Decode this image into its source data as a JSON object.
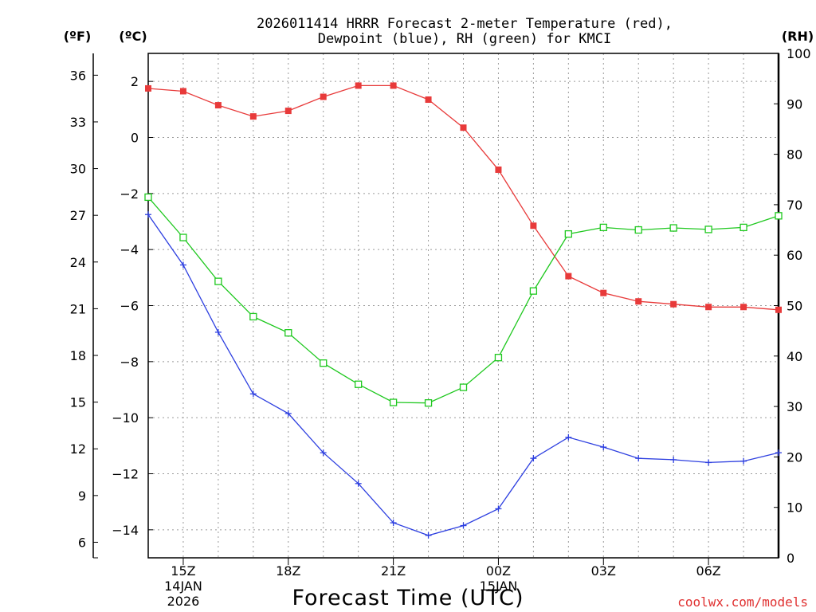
{
  "title": {
    "line1": "2026011414 HRRR Forecast 2-meter Temperature (red),",
    "line2": "Dewpoint (blue), RH (green) for KMCI"
  },
  "units": {
    "fahrenheit": "(ºF)",
    "celsius": "(ºC)",
    "rh": "(RH)"
  },
  "xlabel": "Forecast Time (UTC)",
  "credit": "coolwx.com/models",
  "colors": {
    "temperature": "#e83a3a",
    "dewpoint": "#2d3fe0",
    "rh": "#1ec81e",
    "axis": "#000000"
  },
  "chart_data": {
    "type": "line",
    "x": [
      14,
      15,
      16,
      17,
      18,
      19,
      20,
      21,
      22,
      23,
      24,
      25,
      26,
      27,
      28,
      29,
      30,
      31,
      32
    ],
    "xlim": [
      14,
      32
    ],
    "ylim_celsius": [
      -15,
      3
    ],
    "ylim_fahrenheit": [
      5,
      37.4
    ],
    "ylim_rh": [
      0,
      100
    ],
    "celsius_ticks": [
      "2",
      "0",
      "−2",
      "−4",
      "−6",
      "−8",
      "−10",
      "−12",
      "−14"
    ],
    "celsius_tick_values": [
      2,
      0,
      -2,
      -4,
      -6,
      -8,
      -10,
      -12,
      -14
    ],
    "fahrenheit_ticks": [
      "36",
      "33",
      "30",
      "27",
      "24",
      "21",
      "18",
      "15",
      "12",
      "9",
      "6"
    ],
    "fahrenheit_tick_values": [
      36,
      33,
      30,
      27,
      24,
      21,
      18,
      15,
      12,
      9,
      6
    ],
    "rh_ticks": [
      "100",
      "90",
      "80",
      "70",
      "60",
      "50",
      "40",
      "30",
      "20",
      "10",
      "0"
    ],
    "rh_tick_values": [
      100,
      90,
      80,
      70,
      60,
      50,
      40,
      30,
      20,
      10,
      0
    ],
    "x_ticks": [
      {
        "x": 15,
        "label": "15Z",
        "sub1": "14JAN",
        "sub2": "2026"
      },
      {
        "x": 18,
        "label": "18Z",
        "sub1": "",
        "sub2": ""
      },
      {
        "x": 21,
        "label": "21Z",
        "sub1": "",
        "sub2": ""
      },
      {
        "x": 24,
        "label": "00Z",
        "sub1": "15JAN",
        "sub2": ""
      },
      {
        "x": 27,
        "label": "03Z",
        "sub1": "",
        "sub2": ""
      },
      {
        "x": 30,
        "label": "06Z",
        "sub1": "",
        "sub2": ""
      }
    ],
    "series": [
      {
        "name": "Temperature",
        "axis": "celsius",
        "marker": "filled-square",
        "values": [
          1.75,
          1.65,
          1.15,
          0.75,
          0.95,
          1.45,
          1.85,
          1.85,
          1.35,
          0.35,
          -1.15,
          -3.15,
          -4.95,
          -5.55,
          -5.85,
          -5.95,
          -6.05,
          -6.05,
          -6.15
        ]
      },
      {
        "name": "Dewpoint",
        "axis": "celsius",
        "marker": "plus",
        "values": [
          -2.75,
          -4.55,
          -6.95,
          -9.15,
          -9.85,
          -11.25,
          -12.35,
          -13.75,
          -14.2,
          -13.85,
          -13.25,
          -11.45,
          -10.7,
          -11.05,
          -11.45,
          -11.5,
          -11.6,
          -11.55,
          -11.25
        ]
      },
      {
        "name": "RH",
        "axis": "rh",
        "marker": "open-square",
        "values": [
          71.5,
          63.5,
          54.8,
          47.8,
          44.6,
          38.6,
          34.4,
          30.8,
          30.7,
          33.8,
          39.7,
          52.9,
          64.2,
          65.5,
          65.0,
          65.4,
          65.1,
          65.5,
          67.8
        ]
      }
    ]
  }
}
